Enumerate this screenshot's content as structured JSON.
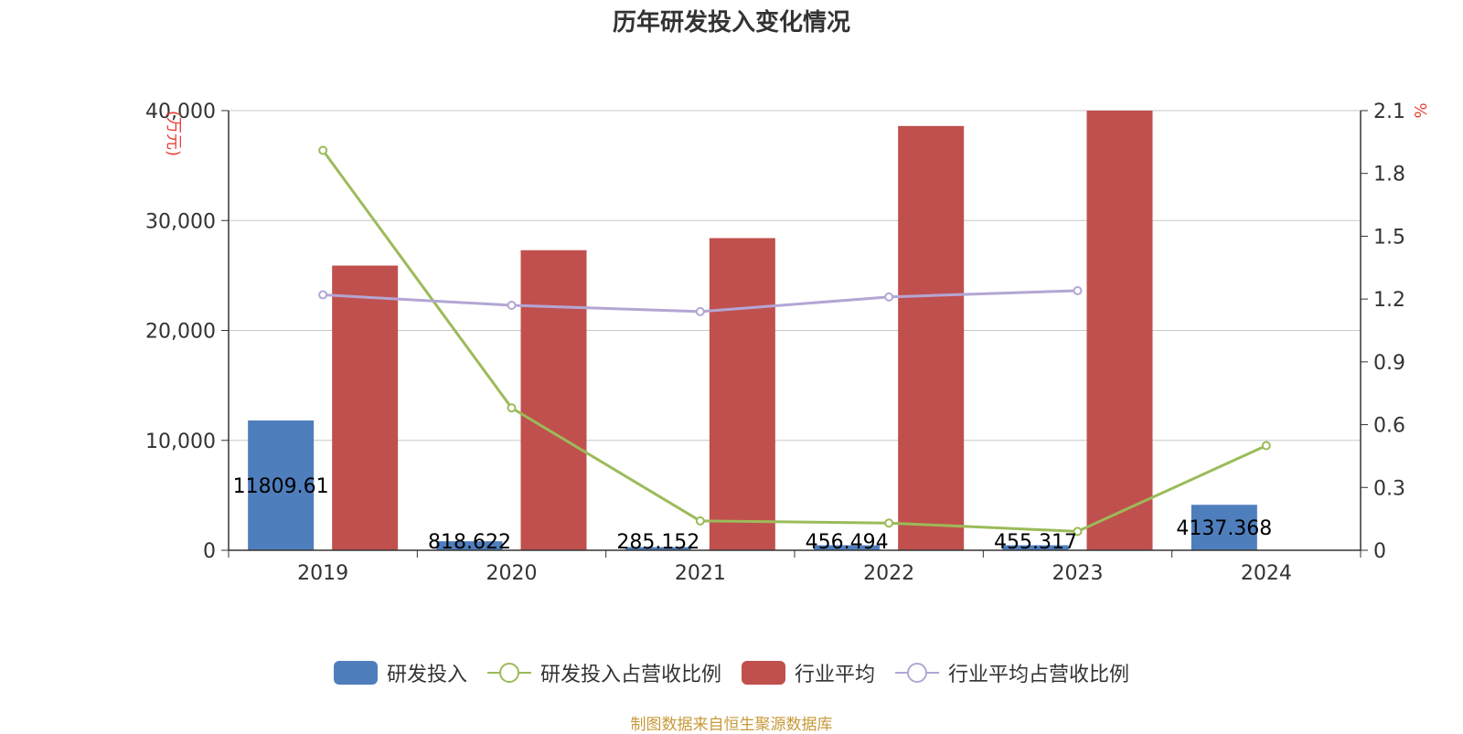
{
  "title": "历年研发投入变化情况",
  "source": "制图数据来自恒生聚源数据库",
  "chart_data": {
    "type": "bar",
    "categories": [
      "2019",
      "2020",
      "2021",
      "2022",
      "2023",
      "2024"
    ],
    "y_left": {
      "unit": "万元",
      "ticks": [
        "0",
        "10,000",
        "20,000",
        "30,000",
        "40,000"
      ],
      "ylim": [
        0,
        40000
      ]
    },
    "y_right": {
      "unit": "%",
      "ticks": [
        "0",
        "0.3",
        "0.6",
        "0.9",
        "1.2",
        "1.5",
        "1.8",
        "2.1"
      ],
      "ylim": [
        0,
        2.1
      ]
    },
    "series": [
      {
        "name": "研发投入",
        "type": "bar",
        "axis": "left",
        "color": "#4f7ebd",
        "values": [
          11809.61,
          818.622,
          285.152,
          456.494,
          455.317,
          4137.368
        ],
        "labels": [
          "11809.61",
          "818.622",
          "285.152",
          "456.494",
          "455.317",
          "4137.368"
        ]
      },
      {
        "name": "研发投入占营收比例",
        "type": "line",
        "axis": "right",
        "color": "#9bbb59",
        "values": [
          1.91,
          0.68,
          0.14,
          0.13,
          0.09,
          0.5
        ]
      },
      {
        "name": "行业平均",
        "type": "bar",
        "axis": "left",
        "color": "#c0504d",
        "values": [
          25900,
          27300,
          28400,
          38600,
          40000,
          null
        ]
      },
      {
        "name": "行业平均占营收比例",
        "type": "line",
        "axis": "right",
        "color": "#b3a6d4",
        "values": [
          1.22,
          1.17,
          1.14,
          1.21,
          1.24,
          null
        ]
      }
    ],
    "grid": true,
    "legend_position": "bottom"
  }
}
